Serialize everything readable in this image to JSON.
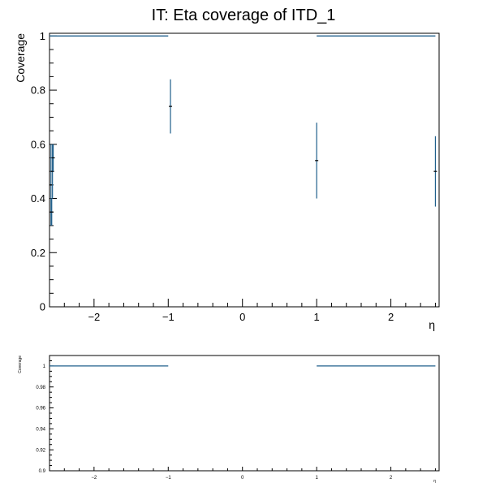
{
  "title": "IT: Eta coverage of ITD_1",
  "colors": {
    "series": "#1f5f8b",
    "axis": "#000000",
    "background": "#ffffff"
  },
  "chart_data": [
    {
      "type": "scatter",
      "title": "IT: Eta coverage of ITD_1",
      "xlabel": "η",
      "ylabel": "Coverage",
      "xlim": [
        -2.6,
        2.65
      ],
      "ylim": [
        0,
        1.01
      ],
      "xticks": [
        -2,
        -1,
        0,
        1,
        2
      ],
      "xtick_labels": [
        "−2",
        "−1",
        "0",
        "1",
        "2"
      ],
      "yticks": [
        0,
        0.2,
        0.4,
        0.6,
        0.8,
        1
      ],
      "ytick_labels": [
        "0",
        "0.2",
        "0.4",
        "0.6",
        "0.8",
        "1"
      ],
      "grid": false,
      "segments": [
        {
          "x0": -2.6,
          "x1": -1.0,
          "y": 1.0
        },
        {
          "x0": 1.0,
          "x1": 2.6,
          "y": 1.0
        }
      ],
      "points": [
        {
          "x": -2.58,
          "y": 0.45,
          "ylo": 0.3,
          "yhi": 0.6
        },
        {
          "x": -2.57,
          "y": 0.35,
          "ylo": 0.3,
          "yhi": 0.4
        },
        {
          "x": -2.56,
          "y": 0.5,
          "ylo": 0.4,
          "yhi": 0.6
        },
        {
          "x": -2.55,
          "y": 0.55,
          "ylo": 0.5,
          "yhi": 0.6
        },
        {
          "x": -0.97,
          "y": 0.74,
          "ylo": 0.64,
          "yhi": 0.84
        },
        {
          "x": 1.0,
          "y": 0.54,
          "ylo": 0.4,
          "yhi": 0.68
        },
        {
          "x": 2.6,
          "y": 0.5,
          "ylo": 0.37,
          "yhi": 0.63
        }
      ]
    },
    {
      "type": "line",
      "title": "",
      "xlabel": "η",
      "ylabel": "Coverage",
      "xlim": [
        -2.6,
        2.65
      ],
      "ylim": [
        0.9,
        1.01
      ],
      "xticks": [
        -2,
        -1,
        0,
        1,
        2
      ],
      "xtick_labels": [
        "−2",
        "−1",
        "0",
        "1",
        "2"
      ],
      "yticks": [
        0.9,
        0.92,
        0.94,
        0.96,
        0.98,
        1
      ],
      "ytick_labels": [
        "0.9",
        "0.92",
        "0.94",
        "0.96",
        "0.98",
        "1"
      ],
      "grid": false,
      "segments": [
        {
          "x0": -2.6,
          "x1": -1.0,
          "y": 1.0
        },
        {
          "x0": 1.0,
          "x1": 2.6,
          "y": 1.0
        }
      ],
      "points": []
    }
  ]
}
